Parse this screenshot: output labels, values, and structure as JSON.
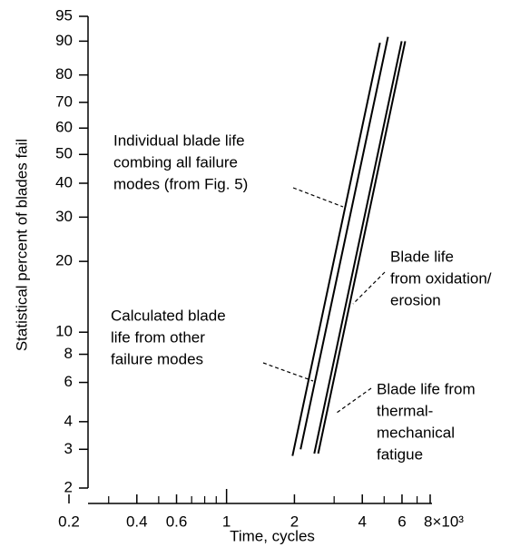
{
  "chart_data": {
    "type": "line",
    "xscale": "log",
    "yscale": "weibull",
    "xlabel": "Time, cycles",
    "ylabel": "Statistical percent of blades fail",
    "xlim": [
      0.2,
      8
    ],
    "ylim": [
      2,
      95
    ],
    "xticks": [
      0.2,
      0.4,
      0.6,
      1,
      2,
      4,
      6,
      {
        "value": 8,
        "label": "8×10³"
      }
    ],
    "xminorticks": [
      0.3,
      0.5,
      0.7,
      0.8,
      0.9,
      3,
      5,
      7
    ],
    "yticks": [
      2,
      3,
      4,
      6,
      8,
      10,
      20,
      30,
      40,
      50,
      60,
      70,
      80,
      90,
      95
    ],
    "series": [
      {
        "color": "#000000",
        "x": [
          1.96,
          4.79
        ],
        "values": [
          2.8,
          89.6
        ]
      },
      {
        "color": "#000000",
        "x": [
          2.13,
          5.2
        ],
        "values": [
          3,
          91
        ]
      },
      {
        "color": "#000000",
        "x": [
          2.45,
          5.98
        ],
        "values": [
          2.87,
          90
        ]
      },
      {
        "color": "#000000",
        "x": [
          2.55,
          6.2
        ],
        "values": [
          2.87,
          90
        ]
      }
    ],
    "annotations": [
      {
        "lines": [
          "Individual blade life",
          "combing all failure",
          "modes (from Fig. 5)"
        ]
      },
      {
        "lines": [
          "Calculated blade",
          "life from other",
          "failure modes"
        ]
      },
      {
        "lines": [
          "Blade life",
          "from oxidation/",
          "erosion"
        ]
      },
      {
        "lines": [
          "Blade life from",
          "thermal-",
          "mechanical",
          "fatigue"
        ]
      }
    ]
  }
}
